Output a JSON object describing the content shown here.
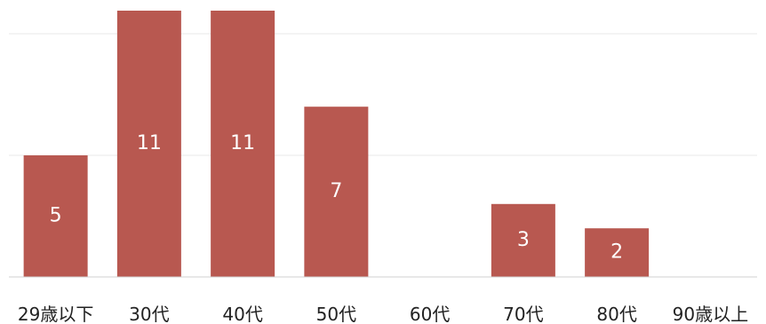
{
  "chart_data": {
    "type": "bar",
    "categories": [
      "29歳以下",
      "30代",
      "40代",
      "50代",
      "60代",
      "70代",
      "80代",
      "90歳以上"
    ],
    "values": [
      5,
      11,
      11,
      7,
      0,
      3,
      2,
      0
    ],
    "data_labels": [
      "5",
      "11",
      "11",
      "7",
      "",
      "3",
      "2",
      ""
    ],
    "ylim": [
      0,
      10
    ],
    "grid": true,
    "legend": "none",
    "bar_color": "#b85850",
    "grid_color": "#e8e8e8",
    "axis_color": "#d0d0d0"
  }
}
